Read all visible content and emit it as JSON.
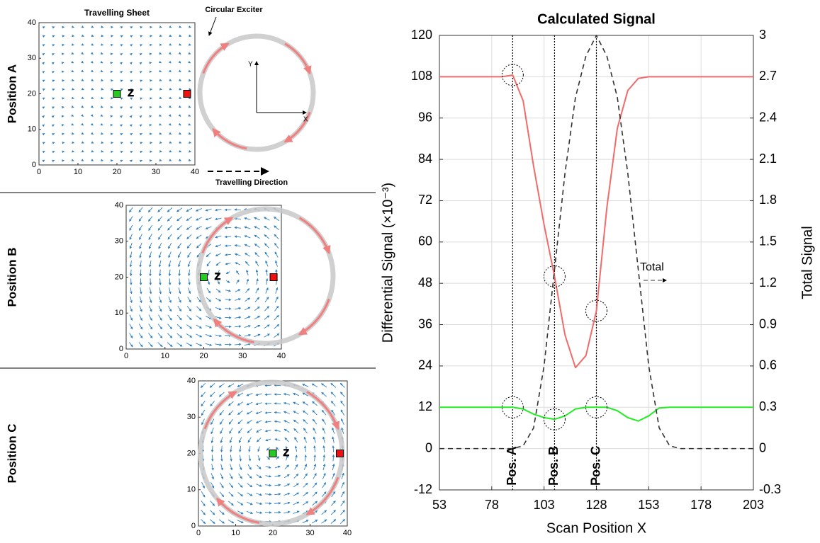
{
  "chart_data": [
    {
      "type": "quiver",
      "title": "Travelling Sheet",
      "ylabel": "Position A",
      "xlim": [
        0,
        40
      ],
      "ylim": [
        0,
        40
      ],
      "xticks": [
        0,
        10,
        20,
        30,
        40
      ],
      "yticks": [
        0,
        10,
        20,
        30,
        40
      ],
      "center_label": "Z",
      "exciter_label": "Circular Exciter",
      "direction_label": "Travelling Direction",
      "axis_labels": [
        "X",
        "Y"
      ],
      "markers": {
        "x": [
          20,
          38
        ],
        "y": [
          20,
          20
        ],
        "colors": [
          "#22cc22",
          "#ee1111"
        ]
      }
    },
    {
      "type": "quiver",
      "ylabel": "Position B",
      "xlim": [
        0,
        40
      ],
      "ylim": [
        0,
        40
      ],
      "xticks": [
        0,
        10,
        20,
        30,
        40
      ],
      "yticks": [
        0,
        10,
        20,
        30,
        40
      ],
      "center_label": "Z",
      "markers": {
        "x": [
          20,
          38
        ],
        "y": [
          20,
          20
        ],
        "colors": [
          "#22cc22",
          "#ee1111"
        ]
      }
    },
    {
      "type": "quiver",
      "ylabel": "Position C",
      "xlim": [
        0,
        40
      ],
      "ylim": [
        0,
        40
      ],
      "xticks": [
        0,
        10,
        20,
        30,
        40
      ],
      "yticks": [
        0,
        10,
        20,
        30,
        40
      ],
      "center_label": "Z",
      "markers": {
        "x": [
          20,
          38
        ],
        "y": [
          20,
          20
        ],
        "colors": [
          "#22cc22",
          "#ee1111"
        ]
      }
    },
    {
      "type": "line",
      "title": "Calculated Signal",
      "xlabel": "Scan Position X",
      "ylabel": "Differential Signal (×10⁻³)",
      "y2label": "Total Signal",
      "xlim": [
        53,
        203
      ],
      "xticks": [
        53,
        78,
        103,
        128,
        153,
        178,
        203
      ],
      "ylim": [
        -12,
        120
      ],
      "yticks": [
        -12,
        0,
        12,
        24,
        36,
        48,
        60,
        72,
        84,
        96,
        108,
        120
      ],
      "y2lim": [
        -0.3,
        3
      ],
      "y2ticks": [
        -0.3,
        0,
        0.3,
        0.6,
        0.9,
        1.2,
        1.5,
        1.8,
        2.1,
        2.4,
        2.7,
        3
      ],
      "grid": true,
      "x": [
        53,
        58,
        63,
        68,
        73,
        78,
        83,
        88,
        93,
        98,
        103,
        108,
        113,
        118,
        123,
        128,
        133,
        138,
        143,
        148,
        153,
        158,
        163,
        168,
        173,
        178,
        183,
        188,
        193,
        198,
        203
      ],
      "series": [
        {
          "color": "#f26b6b",
          "values": [
            108,
            108,
            108,
            108,
            108,
            108,
            108,
            108.5,
            101,
            82,
            65,
            50,
            33,
            23.5,
            27,
            40,
            70,
            93,
            104,
            107.5,
            108,
            108,
            108,
            108,
            108,
            108,
            108,
            108,
            108,
            108,
            108
          ]
        },
        {
          "color": "#22ee22",
          "values": [
            12,
            12,
            12,
            12,
            12,
            12,
            12,
            12,
            11.5,
            10,
            9,
            8.5,
            9.5,
            11.5,
            12,
            12,
            12,
            11,
            9,
            8,
            9.5,
            11.8,
            12,
            12,
            12,
            12,
            12,
            12,
            12,
            12,
            12
          ]
        },
        {
          "name": "Total",
          "color": "#333333",
          "dash": true,
          "axis": "y2",
          "values": [
            0,
            0,
            0,
            0,
            0,
            0,
            0,
            0,
            0.02,
            0.15,
            0.6,
            1.3,
            2.0,
            2.55,
            2.85,
            3.0,
            2.85,
            2.55,
            2.0,
            1.3,
            0.6,
            0.15,
            0.02,
            0,
            0,
            0,
            0,
            0,
            0,
            0,
            0
          ]
        }
      ],
      "vlines": [
        {
          "x": 88,
          "label": "Pos. A"
        },
        {
          "x": 108,
          "label": "Pos. B"
        },
        {
          "x": 128,
          "label": "Pos. C"
        }
      ]
    }
  ]
}
